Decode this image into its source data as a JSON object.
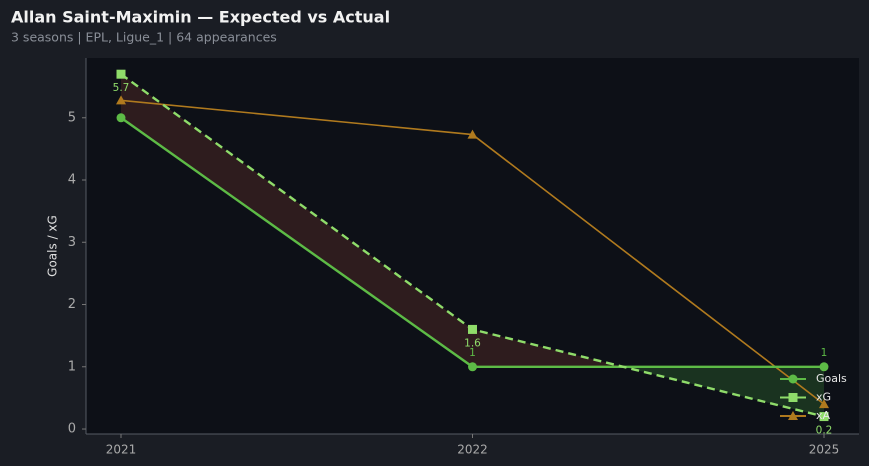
{
  "chart_data": {
    "type": "line",
    "title": "Allan Saint-Maximin — Expected vs Actual",
    "subtitle": "3 seasons | EPL, Ligue_1 | 64 appearances",
    "y_label": "Goals / xG",
    "categories": [
      "2021",
      "2022",
      "2025"
    ],
    "series": [
      {
        "name": "Goals",
        "color": "#5dbb46",
        "marker": "circle",
        "dash": false,
        "values": [
          5,
          1,
          1
        ],
        "value_labels": [
          null,
          "1",
          "1"
        ]
      },
      {
        "name": "xG",
        "color": "#8fdc6a",
        "marker": "square",
        "dash": true,
        "values": [
          5.7,
          1.6,
          0.2
        ],
        "value_labels": [
          "5.7",
          "1.6",
          "0.2"
        ]
      },
      {
        "name": "xA",
        "color": "#b07a1e",
        "marker": "triangle",
        "dash": false,
        "values": [
          5.28,
          4.73,
          0.4
        ]
      }
    ],
    "fill_over_color": "#2e1c1e",
    "fill_under_color": "#1a3320",
    "ylim": [
      -0.08,
      5.96
    ],
    "yticks": [
      0,
      1,
      2,
      3,
      4,
      5
    ],
    "grid": false,
    "legend": "lower right"
  }
}
